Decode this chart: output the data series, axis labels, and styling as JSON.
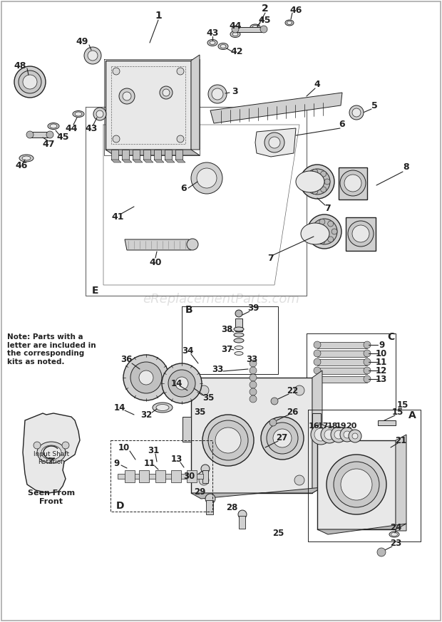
{
  "bg_color": "#ffffff",
  "watermark": "eReplacementParts.com",
  "watermark_color": "#cccccc",
  "note_text": "Note: Parts with a\nletter are included in\nthe corresponding\nkits as noted.",
  "seen_from_text": "Seen From\nFront",
  "input_shaft_text": "Input Shaft\nRotation",
  "fig_width": 6.2,
  "fig_height": 8.73,
  "dpi": 100,
  "dark": "#222222",
  "mid": "#666666",
  "light": "#cccccc",
  "fill_light": "#e8e8e8",
  "fill_mid": "#d0d0d0",
  "fill_dark": "#b8b8b8"
}
